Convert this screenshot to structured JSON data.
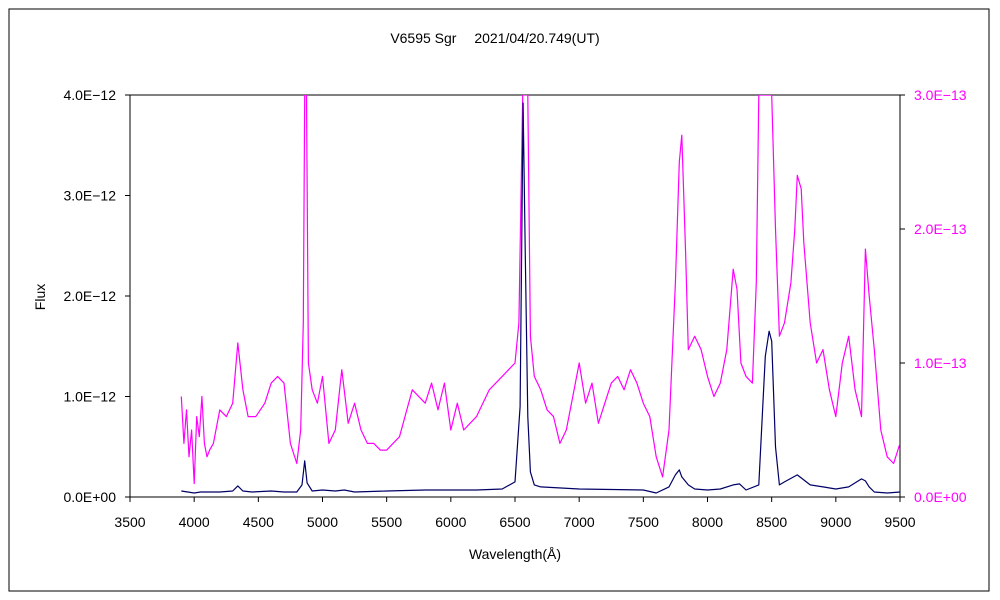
{
  "chart_data": {
    "type": "line",
    "title": "V6595 Sgr　 2021/04/20.749(UT)",
    "xlabel": "Wavelength(Å)",
    "ylabel": "Flux",
    "xlim": [
      3500,
      9500
    ],
    "xticks": [
      "3500",
      "4000",
      "4500",
      "5000",
      "5500",
      "6000",
      "6500",
      "7000",
      "7500",
      "8000",
      "8500",
      "9000",
      "9500"
    ],
    "ylim_left": [
      0,
      4e-12
    ],
    "yticks_left": [
      "0.0E+00",
      "1.0E−12",
      "2.0E−12",
      "3.0E−12",
      "4.0E−12"
    ],
    "ylim_right": [
      0,
      3e-13
    ],
    "yticks_right": [
      "0.0E+00",
      "1.0E−13",
      "2.0E−13",
      "3.0E−13"
    ],
    "grid": false,
    "legend": "none",
    "series": [
      {
        "axis": "left",
        "color": "#000066",
        "x": [
          3900,
          3950,
          4000,
          4050,
          4100,
          4200,
          4300,
          4340,
          4380,
          4450,
          4600,
          4700,
          4800,
          4840,
          4861,
          4880,
          4920,
          5000,
          5100,
          5170,
          5250,
          5500,
          5800,
          6000,
          6200,
          6400,
          6500,
          6540,
          6563,
          6580,
          6600,
          6620,
          6650,
          6700,
          7000,
          7500,
          7600,
          7700,
          7750,
          7780,
          7800,
          7850,
          7900,
          8000,
          8100,
          8200,
          8250,
          8300,
          8400,
          8450,
          8480,
          8500,
          8530,
          8560,
          8600,
          8700,
          8800,
          8900,
          9000,
          9100,
          9200,
          9230,
          9260,
          9300,
          9400,
          9500
        ],
        "y": [
          6e-14,
          5e-14,
          4e-14,
          5e-14,
          5e-14,
          5e-14,
          6e-14,
          1.1e-13,
          6e-14,
          5e-14,
          6e-14,
          5e-14,
          5e-14,
          1.2e-13,
          3.6e-13,
          1.4e-13,
          6e-14,
          7e-14,
          6e-14,
          7e-14,
          5e-14,
          6e-14,
          7e-14,
          7e-14,
          7e-14,
          8e-14,
          1.5e-13,
          9e-13,
          3.92e-12,
          2.4e-12,
          8e-13,
          2.5e-13,
          1.2e-13,
          1e-13,
          8e-14,
          7e-14,
          4e-14,
          1e-13,
          2.2e-13,
          2.7e-13,
          2e-13,
          1.2e-13,
          8e-14,
          7e-14,
          8e-14,
          1.2e-13,
          1.3e-13,
          7e-14,
          1.2e-13,
          1.4e-12,
          1.65e-12,
          1.55e-12,
          5e-13,
          1.2e-13,
          1.5e-13,
          2.2e-13,
          1.2e-13,
          1e-13,
          8e-14,
          1e-13,
          1.8e-13,
          1.6e-13,
          1e-13,
          5e-14,
          4e-14,
          5e-14
        ]
      },
      {
        "axis": "right",
        "color": "#ff00ff",
        "x": [
          3900,
          3920,
          3940,
          3960,
          3980,
          4000,
          4020,
          4040,
          4060,
          4080,
          4100,
          4120,
          4150,
          4200,
          4250,
          4300,
          4340,
          4380,
          4420,
          4480,
          4550,
          4600,
          4650,
          4700,
          4750,
          4800,
          4830,
          4850,
          4861,
          4875,
          4890,
          4920,
          4960,
          5000,
          5050,
          5100,
          5150,
          5200,
          5250,
          5300,
          5350,
          5400,
          5450,
          5500,
          5600,
          5700,
          5800,
          5850,
          5900,
          5950,
          6000,
          6050,
          6100,
          6200,
          6300,
          6400,
          6450,
          6500,
          6530,
          6560,
          6600,
          6620,
          6650,
          6700,
          6750,
          6800,
          6850,
          6900,
          6950,
          7000,
          7050,
          7100,
          7150,
          7200,
          7250,
          7300,
          7350,
          7400,
          7450,
          7500,
          7550,
          7600,
          7650,
          7700,
          7750,
          7780,
          7800,
          7830,
          7850,
          7900,
          7950,
          8000,
          8050,
          8100,
          8150,
          8200,
          8230,
          8260,
          8300,
          8350,
          8380,
          8400,
          8450,
          8500,
          8530,
          8560,
          8600,
          8650,
          8680,
          8700,
          8730,
          8750,
          8800,
          8850,
          8900,
          8950,
          9000,
          9050,
          9100,
          9150,
          9200,
          9230,
          9260,
          9300,
          9350,
          9400,
          9450,
          9500
        ],
        "y": [
          7.5e-14,
          4e-14,
          6.5e-14,
          3e-14,
          5e-14,
          1e-14,
          6e-14,
          4.5e-14,
          7.5e-14,
          4e-14,
          3e-14,
          3.5e-14,
          4e-14,
          6.5e-14,
          6e-14,
          7e-14,
          1.15e-13,
          8e-14,
          6e-14,
          6e-14,
          7e-14,
          8.5e-14,
          9e-14,
          8.5e-14,
          4e-14,
          2.5e-14,
          5e-14,
          1.3e-13,
          3e-13,
          3e-13,
          1e-13,
          8e-14,
          7e-14,
          9e-14,
          4e-14,
          5e-14,
          9.5e-14,
          5.5e-14,
          7e-14,
          5e-14,
          4e-14,
          4e-14,
          3.5e-14,
          3.5e-14,
          4.5e-14,
          8e-14,
          7e-14,
          8.5e-14,
          6.5e-14,
          8.5e-14,
          5e-14,
          7e-14,
          5e-14,
          6e-14,
          8e-14,
          9e-14,
          9.5e-14,
          1e-13,
          1.3e-13,
          3e-13,
          3e-13,
          1.2e-13,
          9e-14,
          8e-14,
          6.5e-14,
          6e-14,
          4e-14,
          5e-14,
          7.5e-14,
          1e-13,
          7e-14,
          8.5e-14,
          5.5e-14,
          7e-14,
          8.5e-14,
          9e-14,
          8e-14,
          9.5e-14,
          8.5e-14,
          7e-14,
          6e-14,
          3e-14,
          1.5e-14,
          5e-14,
          1.6e-13,
          2.5e-13,
          2.7e-13,
          1.8e-13,
          1.1e-13,
          1.2e-13,
          1.1e-13,
          9e-14,
          7.5e-14,
          8.5e-14,
          1.1e-13,
          1.7e-13,
          1.55e-13,
          1e-13,
          9e-14,
          8.5e-14,
          1.6e-13,
          3e-13,
          3e-13,
          3e-13,
          2e-13,
          1.2e-13,
          1.3e-13,
          1.6e-13,
          2e-13,
          2.4e-13,
          2.3e-13,
          1.9e-13,
          1.3e-13,
          1e-13,
          1.1e-13,
          8e-14,
          6e-14,
          1e-13,
          1.2e-13,
          8e-14,
          6e-14,
          1.85e-13,
          1.5e-13,
          1.1e-13,
          5e-14,
          3e-14,
          2.5e-14,
          4e-14
        ]
      }
    ]
  }
}
